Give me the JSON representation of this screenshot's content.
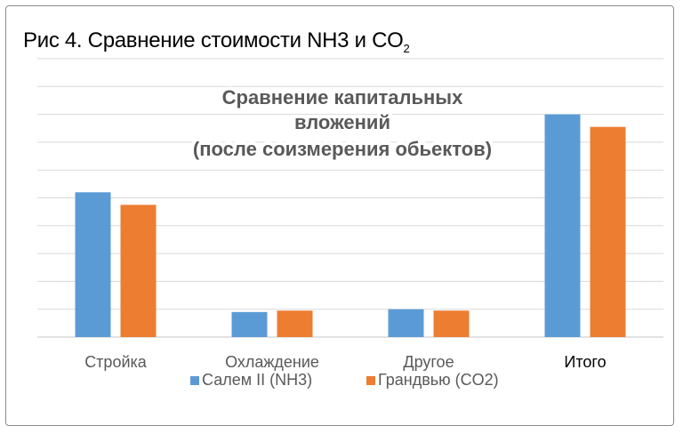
{
  "figure": {
    "caption_prefix": "Рис 4. Сравнение стоимости NH3 и CO",
    "caption_sub": "2"
  },
  "chart_data": {
    "type": "bar",
    "title_lines": [
      "Сравнение капитальных",
      "вложений",
      "(после соизмерения обьектов)"
    ],
    "categories": [
      "Стройка",
      "Охлаждение",
      "Другое",
      "Итого"
    ],
    "category_emphasis": [
      false,
      false,
      false,
      true
    ],
    "series": [
      {
        "name": "Салем II (NH3)",
        "color": "#5b9bd5",
        "values": [
          52,
          9,
          10,
          80
        ]
      },
      {
        "name": "Грандвью (CO2)",
        "color": "#ed7d31",
        "values": [
          47.5,
          9.5,
          9.5,
          75.5
        ]
      }
    ],
    "ylim": [
      0,
      100
    ],
    "y_tick_labels_shown": false,
    "grid": true,
    "legend_position": "bottom"
  }
}
